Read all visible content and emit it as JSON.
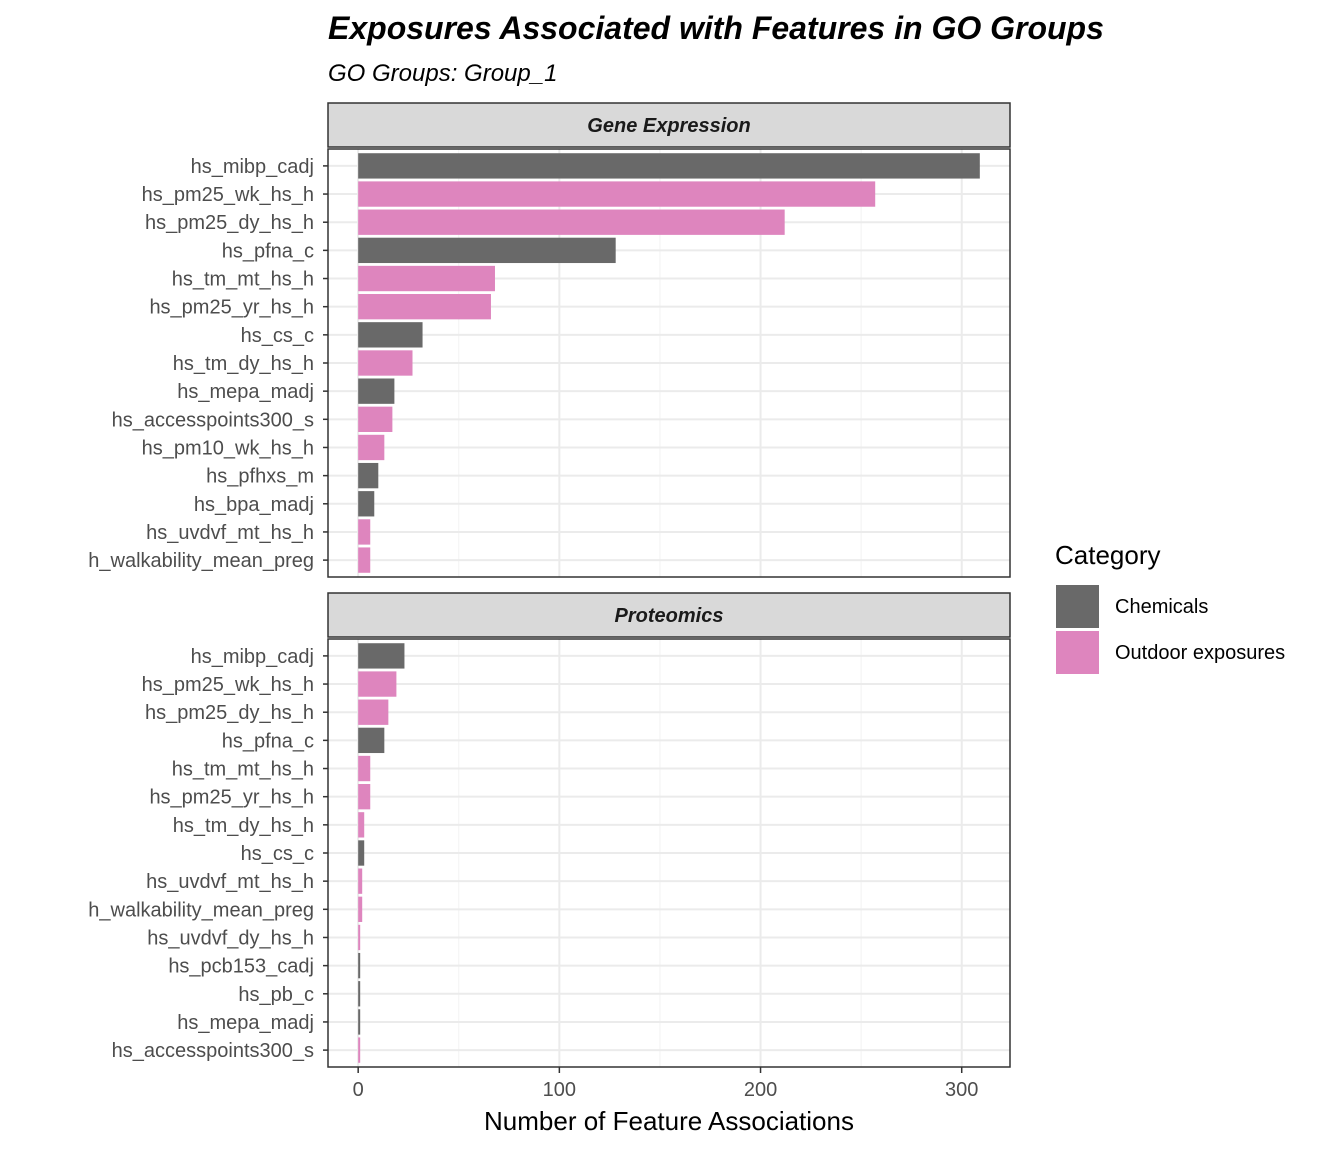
{
  "chart_data": {
    "type": "bar",
    "orientation": "horizontal",
    "title": "Exposures Associated with Features in GO Groups",
    "subtitle": "GO Groups: Group_1",
    "xlabel": "Number of Feature Associations",
    "ylabel": "",
    "xlim": [
      -15,
      324
    ],
    "xticks": [
      "0",
      "100",
      "200",
      "300"
    ],
    "xtick_values": [
      0,
      100,
      200,
      300
    ],
    "grid": true,
    "legend": {
      "title": "Category",
      "position": "right",
      "entries": [
        {
          "label": "Chemicals",
          "color": "#696969"
        },
        {
          "label": "Outdoor exposures",
          "color": "#de85be"
        }
      ]
    },
    "facets": [
      {
        "name": "Gene Expression",
        "categories": [
          "hs_mibp_cadj",
          "hs_pm25_wk_hs_h",
          "hs_pm25_dy_hs_h",
          "hs_pfna_c",
          "hs_tm_mt_hs_h",
          "hs_pm25_yr_hs_h",
          "hs_cs_c",
          "hs_tm_dy_hs_h",
          "hs_mepa_madj",
          "hs_accesspoints300_s",
          "hs_pm10_wk_hs_h",
          "hs_pfhxs_m",
          "hs_bpa_madj",
          "hs_uvdvf_mt_hs_h",
          "h_walkability_mean_preg"
        ],
        "values": [
          309,
          257,
          212,
          128,
          68,
          66,
          32,
          27,
          18,
          17,
          13,
          10,
          8,
          6,
          6
        ],
        "groups": [
          "Chemicals",
          "Outdoor exposures",
          "Outdoor exposures",
          "Chemicals",
          "Outdoor exposures",
          "Outdoor exposures",
          "Chemicals",
          "Outdoor exposures",
          "Chemicals",
          "Outdoor exposures",
          "Outdoor exposures",
          "Chemicals",
          "Chemicals",
          "Outdoor exposures",
          "Outdoor exposures"
        ]
      },
      {
        "name": "Proteomics",
        "categories": [
          "hs_mibp_cadj",
          "hs_pm25_wk_hs_h",
          "hs_pm25_dy_hs_h",
          "hs_pfna_c",
          "hs_tm_mt_hs_h",
          "hs_pm25_yr_hs_h",
          "hs_tm_dy_hs_h",
          "hs_cs_c",
          "hs_uvdvf_mt_hs_h",
          "h_walkability_mean_preg",
          "hs_uvdvf_dy_hs_h",
          "hs_pcb153_cadj",
          "hs_pb_c",
          "hs_mepa_madj",
          "hs_accesspoints300_s"
        ],
        "values": [
          23,
          19,
          15,
          13,
          6,
          6,
          3,
          3,
          2,
          2,
          1,
          1,
          1,
          1,
          1
        ],
        "groups": [
          "Chemicals",
          "Outdoor exposures",
          "Outdoor exposures",
          "Chemicals",
          "Outdoor exposures",
          "Outdoor exposures",
          "Outdoor exposures",
          "Chemicals",
          "Outdoor exposures",
          "Outdoor exposures",
          "Outdoor exposures",
          "Chemicals",
          "Chemicals",
          "Chemicals",
          "Outdoor exposures"
        ]
      }
    ]
  }
}
